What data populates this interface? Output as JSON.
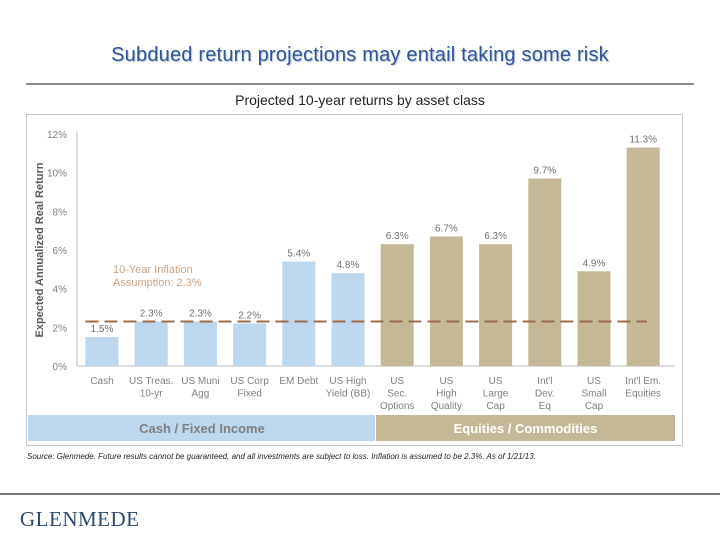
{
  "header": {
    "title": "Subdued return projections may entail taking some risk"
  },
  "footer": {
    "source": "Source: Glenmede. Future results cannot be guaranteed, and all investments are subject to loss. Inflation is assumed to be 2.3%. As of 1/21/13.",
    "logo": "GLENMEDE"
  },
  "colors": {
    "fixed_income": "#bdd7ee",
    "equities": "#c4b896",
    "inflation_line": "#9c6b4a",
    "title": "#2f5597"
  },
  "chart_data": {
    "type": "bar",
    "title": "Projected 10-year returns by asset class",
    "ylabel": "Expected Annualized Real Return",
    "ylim": [
      0,
      12
    ],
    "yticks": [
      "0%",
      "2%",
      "4%",
      "6%",
      "8%",
      "10%",
      "12%"
    ],
    "categories": [
      [
        "Cash"
      ],
      [
        "US Treas.",
        "10-yr"
      ],
      [
        "US Muni",
        "Agg"
      ],
      [
        "US Corp",
        "Fixed"
      ],
      [
        "EM Debt"
      ],
      [
        "US High",
        "Yield (BB)"
      ],
      [
        "US",
        "Sec.",
        "Options"
      ],
      [
        "US",
        "High",
        "Quality"
      ],
      [
        "US",
        "Large",
        "Cap"
      ],
      [
        "Int'l",
        "Dev.",
        "Eq"
      ],
      [
        "US",
        "Small",
        "Cap"
      ],
      [
        "Int'l Em.",
        "Equities"
      ]
    ],
    "values": [
      1.5,
      2.3,
      2.3,
      2.2,
      5.4,
      4.8,
      6.3,
      6.7,
      6.3,
      9.7,
      4.9,
      11.3
    ],
    "labels": [
      "1.5%",
      "2.3%",
      "2.3%",
      "2.2%",
      "5.4%",
      "4.8%",
      "6.3%",
      "6.7%",
      "6.3%",
      "9.7%",
      "4.9%",
      "11.3%"
    ],
    "groups": [
      {
        "name": "Cash / Fixed Income",
        "count": 6
      },
      {
        "name": "Equities / Commodities",
        "count": 6
      }
    ],
    "inflation": {
      "value": 2.3,
      "label": [
        "10-Year Inflation",
        "Assumption: 2.3%"
      ]
    }
  }
}
